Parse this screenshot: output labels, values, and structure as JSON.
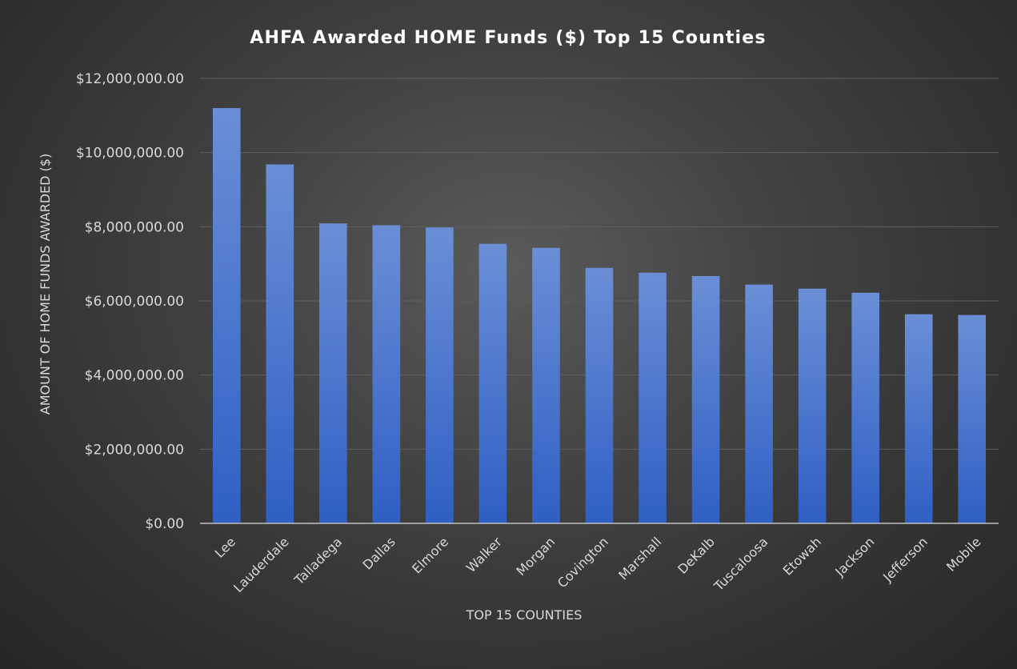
{
  "chart_data": {
    "type": "bar",
    "title": "AHFA Awarded HOME Funds ($) Top 15 Counties",
    "xlabel": "TOP 15 COUNTIES",
    "ylabel": "AMOUNT OF HOME FUNDS AWARDED ($)",
    "categories": [
      "Lee",
      "Lauderdale",
      "Talladega",
      "Dallas",
      "Elmore",
      "Walker",
      "Morgan",
      "Covington",
      "Marshall",
      "DeKalb",
      "Tuscaloosa",
      "Etowah",
      "Jackson",
      "Jefferson",
      "Mobile"
    ],
    "values": [
      11200000,
      9680000,
      8090000,
      8040000,
      7980000,
      7540000,
      7430000,
      6890000,
      6760000,
      6670000,
      6440000,
      6330000,
      6220000,
      5640000,
      5620000
    ],
    "ylim": [
      0,
      12000000
    ],
    "yticks": [
      0,
      2000000,
      4000000,
      6000000,
      8000000,
      10000000,
      12000000
    ],
    "ytick_labels": [
      "$0.00",
      "$2,000,000.00",
      "$4,000,000.00",
      "$6,000,000.00",
      "$8,000,000.00",
      "$10,000,000.00",
      "$12,000,000.00"
    ],
    "grid": true,
    "legend": "none",
    "colors": {
      "bar_top": "#6a8fd6",
      "bar_bottom": "#2f5fc4",
      "gridline": "#5e5e5e",
      "baseline": "#bfbfbf",
      "text": "#d9d9d9",
      "title": "#ffffff"
    }
  }
}
